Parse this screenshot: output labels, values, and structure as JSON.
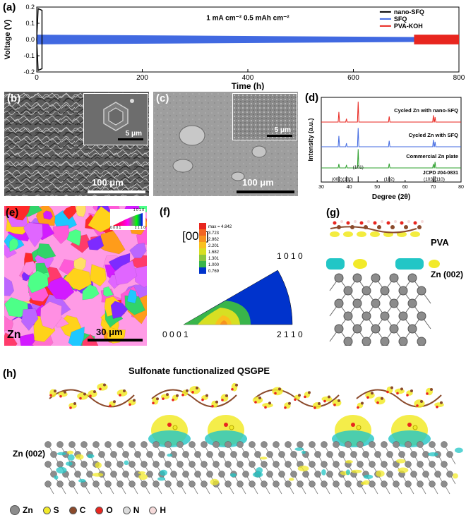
{
  "panel_letters": {
    "a": "(a)",
    "b": "(b)",
    "c": "(c)",
    "d": "(d)",
    "e": "(e)",
    "f": "(f)",
    "g": "(g)",
    "h": "(h)"
  },
  "colors": {
    "nano_sfq": "#000000",
    "sfq": "#4169e1",
    "pva_koh": "#e8261f",
    "xrd_top": "#e8261f",
    "xrd_mid": "#4169e1",
    "xrd_low": "#2ea02e",
    "xrd_ref": "#000000",
    "iso_yellow": "#f2ea2a",
    "iso_cyan": "#22c6c6",
    "zn_gray": "#8c8c8c"
  },
  "chart_data": [
    {
      "type": "line",
      "panel": "(a)",
      "xlabel": "Time (h)",
      "ylabel": "Voltage (V)",
      "xlim": [
        0,
        800
      ],
      "ylim": [
        -0.2,
        0.2
      ],
      "xticks": [
        "0",
        "200",
        "400",
        "600",
        "800"
      ],
      "yticks": [
        "0.2",
        "0.1",
        "0.0",
        "-0.1",
        "-0.2"
      ],
      "annotation": "1 mA cm⁻²    0.5 mAh cm⁻²",
      "legend_position": "top-right",
      "series": [
        {
          "name": "nano-SFQ",
          "x": [
            0,
            10,
            720
          ],
          "ymax": [
            0.19,
            0.18,
            0.015
          ],
          "ymin": [
            -0.19,
            -0.18,
            -0.015
          ]
        },
        {
          "name": "SFQ",
          "x": [
            0,
            720
          ],
          "ymax": [
            0.03,
            0.015
          ],
          "ymin": [
            -0.03,
            -0.015
          ]
        },
        {
          "name": "PVA-KOH",
          "x": [
            715,
            800
          ],
          "ymax": [
            0.03,
            0.03
          ],
          "ymin": [
            -0.03,
            -0.03
          ]
        }
      ]
    },
    {
      "type": "line",
      "panel": "(d)",
      "xlabel": "Degree (2θ)",
      "ylabel": "Intensity (a.u.)",
      "xlim": [
        30,
        80
      ],
      "xticks": [
        "30",
        "40",
        "50",
        "60",
        "70",
        "80"
      ],
      "series": [
        {
          "name": "Cycled Zn with nano-SFQ",
          "peaks": [
            36.3,
            39.0,
            43.2,
            54.3,
            70.1,
            70.7
          ],
          "heights": [
            0.45,
            0.15,
            0.9,
            0.25,
            0.3,
            0.22
          ]
        },
        {
          "name": "Cycled Zn with SFQ",
          "peaks": [
            36.3,
            39.0,
            43.2,
            54.3,
            70.1,
            70.7
          ],
          "heights": [
            0.55,
            0.18,
            0.95,
            0.3,
            0.35,
            0.25
          ]
        },
        {
          "name": "Commercial Zn plate",
          "peaks": [
            36.3,
            39.0,
            43.2,
            54.3,
            70.1,
            70.7
          ],
          "heights": [
            0.2,
            0.15,
            0.95,
            0.22,
            0.2,
            0.3
          ]
        }
      ],
      "reference": {
        "label": "JCPD #04-0831",
        "peaks": [
          36.3,
          39.0,
          43.2,
          54.3,
          70.1,
          70.7
        ]
      },
      "peak_labels": [
        "(002)(100)",
        "(101)",
        "(102)",
        "(103)(110)"
      ]
    },
    {
      "type": "heatmap",
      "panel": "(f)",
      "title": "[001]",
      "legend": [
        "max = 4.842",
        "3.723",
        "2.862",
        "2.201",
        "1.682",
        "1.301",
        "1.000",
        "0.769"
      ],
      "legend_colors": [
        "#e8261f",
        "#f26522",
        "#f7931e",
        "#f9c01e",
        "#d7df23",
        "#8dc63f",
        "#39b54a",
        "#0033cc"
      ],
      "corners": [
        "0 0 0 1",
        "2 1 1 0",
        "1 0 1 0"
      ]
    }
  ],
  "panel_b": {
    "inset_scale": "5 μm",
    "scale": "100 μm"
  },
  "panel_c": {
    "inset_scale": "5 μm",
    "scale": "100 μm"
  },
  "panel_e": {
    "corner_label": "Zn",
    "scale": "30 μm",
    "ipf_labels": [
      "1 0 1 0",
      "0 0 0 1",
      "2 1 1 0"
    ]
  },
  "panel_g": {
    "top_label": "PVA",
    "bottom_label": "Zn (002)"
  },
  "panel_h": {
    "title": "Sulfonate functionalized QSGPE",
    "surface_label": "Zn (002)",
    "legend": [
      {
        "symbol": "Zn",
        "color": "#8c8c8c"
      },
      {
        "symbol": "S",
        "color": "#f2ea2a"
      },
      {
        "symbol": "C",
        "color": "#8b4a2b"
      },
      {
        "symbol": "O",
        "color": "#e8261f"
      },
      {
        "symbol": "N",
        "color": "#dcdcdc"
      },
      {
        "symbol": "H",
        "color": "#f5dada"
      }
    ]
  }
}
